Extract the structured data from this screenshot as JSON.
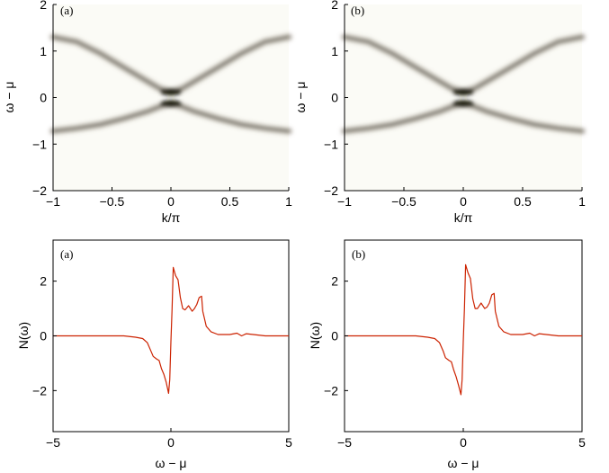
{
  "chart_data": [
    {
      "type": "heatmap",
      "panel_label": "(a)",
      "xlabel": "k/π",
      "ylabel": "ω − μ",
      "xlim": [
        -1,
        1
      ],
      "ylim": [
        -2,
        2
      ],
      "xticks": [
        "−1",
        "−0.5",
        "0",
        "0.5",
        "1"
      ],
      "yticks": [
        "−2",
        "−1",
        "0",
        "1",
        "2"
      ],
      "bands": [
        {
          "name": "",
          "x": [
            -1,
            -0.8,
            -0.6,
            -0.4,
            -0.2,
            -0.1,
            0,
            0.1,
            0.2,
            0.4,
            0.6,
            0.8,
            1
          ],
          "values": [
            1.3,
            1.2,
            0.95,
            0.65,
            0.35,
            0.2,
            0.12,
            0.2,
            0.35,
            0.65,
            0.95,
            1.2,
            1.3
          ]
        },
        {
          "name": "",
          "x": [
            -1,
            -0.8,
            -0.6,
            -0.4,
            -0.2,
            -0.1,
            0,
            0.1,
            0.2,
            0.4,
            0.6,
            0.8,
            1
          ],
          "values": [
            -0.72,
            -0.66,
            -0.58,
            -0.45,
            -0.3,
            -0.2,
            -0.13,
            -0.2,
            -0.3,
            -0.45,
            -0.58,
            -0.66,
            -0.72
          ]
        }
      ],
      "colormap": [
        "#ffffff",
        "#000000"
      ],
      "grid": false
    },
    {
      "type": "heatmap",
      "panel_label": "(b)",
      "xlabel": "k/π",
      "ylabel": "ω − μ",
      "xlim": [
        -1,
        1
      ],
      "ylim": [
        -2,
        2
      ],
      "xticks": [
        "−1",
        "−0.5",
        "0",
        "0.5",
        "1"
      ],
      "yticks": [
        "−2",
        "−1",
        "0",
        "1",
        "2"
      ],
      "bands": [
        {
          "name": "",
          "x": [
            -1,
            -0.8,
            -0.6,
            -0.4,
            -0.2,
            -0.1,
            0,
            0.1,
            0.2,
            0.4,
            0.6,
            0.8,
            1
          ],
          "values": [
            1.3,
            1.2,
            0.95,
            0.65,
            0.35,
            0.2,
            0.12,
            0.2,
            0.35,
            0.65,
            0.95,
            1.2,
            1.3
          ]
        },
        {
          "name": "",
          "x": [
            -1,
            -0.8,
            -0.6,
            -0.4,
            -0.2,
            -0.1,
            0,
            0.1,
            0.2,
            0.4,
            0.6,
            0.8,
            1
          ],
          "values": [
            -0.72,
            -0.66,
            -0.58,
            -0.45,
            -0.3,
            -0.2,
            -0.13,
            -0.2,
            -0.3,
            -0.45,
            -0.58,
            -0.66,
            -0.72
          ]
        }
      ],
      "colormap": [
        "#ffffff",
        "#000000"
      ],
      "grid": false
    },
    {
      "type": "line",
      "panel_label": "(a)",
      "xlabel": "ω − μ",
      "ylabel": "N(ω)",
      "xlim": [
        -5,
        5
      ],
      "ylim": [
        -3.5,
        3.5
      ],
      "xticks": [
        "−5",
        "0",
        "5"
      ],
      "yticks": [
        "−2",
        "0",
        "2"
      ],
      "series": [
        {
          "name": "",
          "color": "#cc2200",
          "x": [
            -5,
            -2,
            -1.5,
            -1.2,
            -1.0,
            -0.85,
            -0.75,
            -0.6,
            -0.5,
            -0.4,
            -0.3,
            -0.2,
            -0.1,
            -0.05,
            0,
            0.05,
            0.1,
            0.2,
            0.3,
            0.4,
            0.5,
            0.6,
            0.75,
            0.9,
            1.0,
            1.1,
            1.2,
            1.3,
            1.35,
            1.5,
            1.7,
            2.0,
            2.5,
            2.8,
            3.0,
            3.2,
            4.0,
            5.0
          ],
          "values": [
            0,
            0,
            -0.05,
            -0.1,
            -0.25,
            -0.55,
            -0.75,
            -0.85,
            -0.9,
            -1.2,
            -1.4,
            -1.7,
            -2.1,
            -1.6,
            -0.2,
            1.0,
            2.5,
            2.2,
            2.05,
            1.4,
            1.0,
            0.95,
            1.1,
            0.9,
            1.0,
            1.15,
            1.4,
            1.45,
            0.9,
            0.35,
            0.15,
            0.05,
            0.05,
            0.1,
            0.0,
            0.08,
            0.0,
            0.0
          ]
        }
      ],
      "grid": false
    },
    {
      "type": "line",
      "panel_label": "(b)",
      "xlabel": "ω − μ",
      "ylabel": "N(ω)",
      "xlim": [
        -5,
        5
      ],
      "ylim": [
        -3.5,
        3.5
      ],
      "xticks": [
        "−5",
        "0",
        "5"
      ],
      "yticks": [
        "−2",
        "0",
        "2"
      ],
      "series": [
        {
          "name": "",
          "color": "#cc2200",
          "x": [
            -5,
            -2,
            -1.5,
            -1.2,
            -1.0,
            -0.85,
            -0.75,
            -0.6,
            -0.5,
            -0.4,
            -0.3,
            -0.2,
            -0.1,
            -0.05,
            0,
            0.05,
            0.1,
            0.2,
            0.3,
            0.4,
            0.5,
            0.6,
            0.75,
            0.9,
            1.0,
            1.1,
            1.2,
            1.3,
            1.35,
            1.5,
            1.7,
            2.0,
            2.5,
            2.8,
            3.0,
            3.2,
            4.0,
            5.0
          ],
          "values": [
            0,
            0,
            -0.05,
            -0.1,
            -0.25,
            -0.55,
            -0.8,
            -0.9,
            -0.95,
            -1.25,
            -1.5,
            -1.8,
            -2.15,
            -1.6,
            -0.2,
            1.0,
            2.6,
            2.3,
            2.1,
            1.35,
            1.0,
            1.0,
            1.2,
            1.0,
            1.05,
            1.2,
            1.5,
            1.55,
            0.9,
            0.35,
            0.15,
            0.05,
            0.05,
            0.1,
            0.0,
            0.08,
            0.0,
            0.0
          ]
        }
      ],
      "grid": false
    }
  ]
}
